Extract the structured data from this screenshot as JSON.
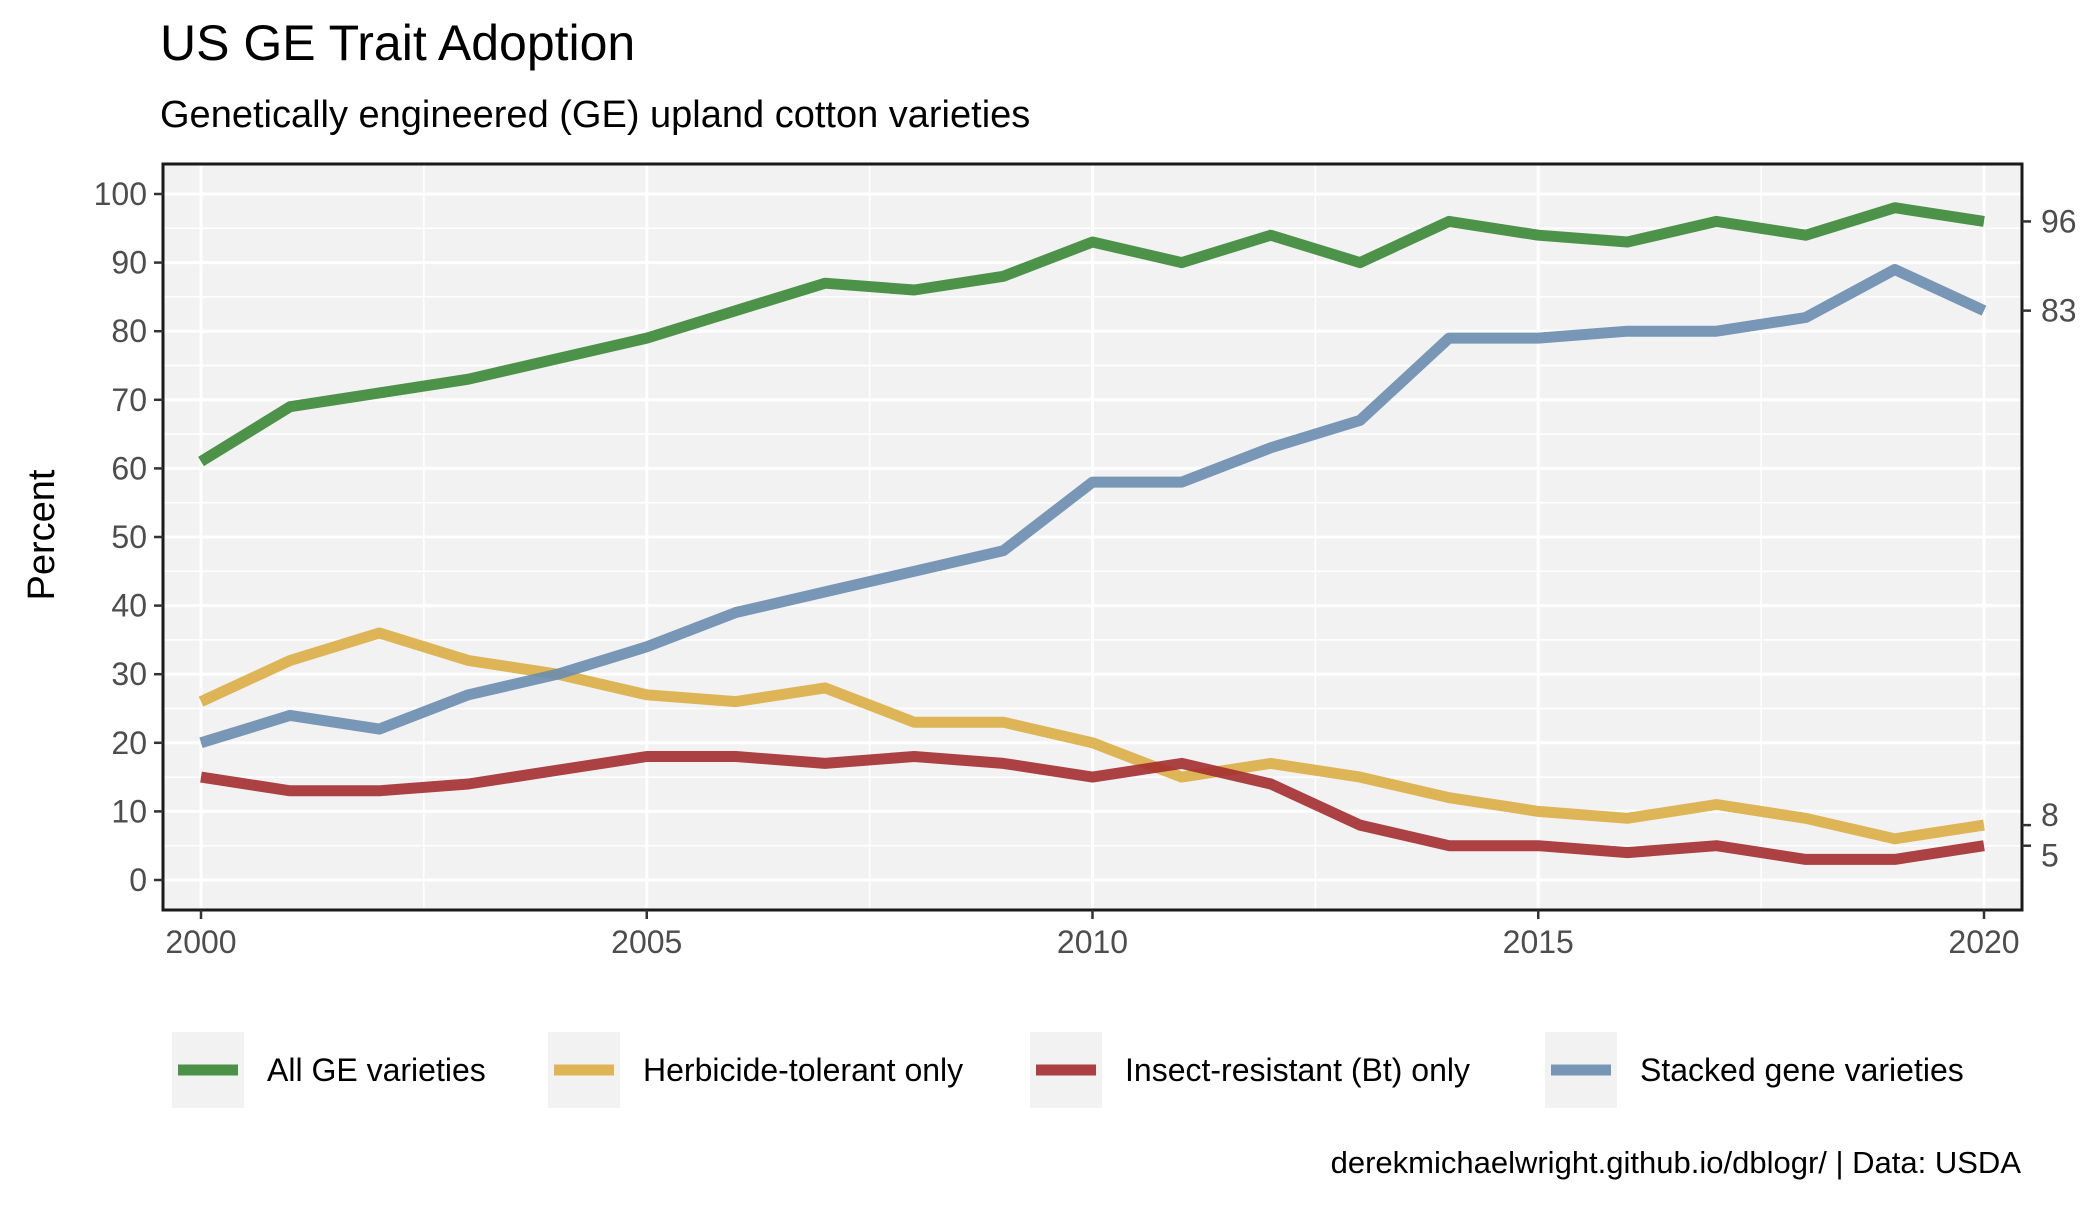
{
  "chart_data": {
    "type": "line",
    "title": "US GE Trait Adoption",
    "subtitle": "Genetically engineered (GE) upland cotton varieties",
    "ylabel": "Percent",
    "xlabel": "",
    "caption": "derekmichaelwright.github.io/dblogr/ | Data: USDA",
    "x": [
      2000,
      2001,
      2002,
      2003,
      2004,
      2005,
      2006,
      2007,
      2008,
      2009,
      2010,
      2011,
      2012,
      2013,
      2014,
      2015,
      2016,
      2017,
      2018,
      2019,
      2020
    ],
    "xlim": [
      2000,
      2020
    ],
    "ylim": [
      0,
      100
    ],
    "x_ticks": [
      2000,
      2005,
      2010,
      2015,
      2020
    ],
    "y_ticks": [
      0,
      10,
      20,
      30,
      40,
      50,
      60,
      70,
      80,
      90,
      100
    ],
    "grid": true,
    "legend_position": "bottom",
    "series": [
      {
        "name": "All GE varieties",
        "color": "#3a8735",
        "values": [
          61,
          69,
          71,
          73,
          76,
          79,
          83,
          87,
          86,
          88,
          93,
          90,
          94,
          90,
          96,
          94,
          93,
          96,
          94,
          98,
          96
        ]
      },
      {
        "name": "Herbicide-tolerant only",
        "color": "#dcae45",
        "values": [
          26,
          32,
          36,
          32,
          30,
          27,
          26,
          28,
          23,
          23,
          20,
          15,
          17,
          15,
          12,
          10,
          9,
          11,
          9,
          6,
          8
        ]
      },
      {
        "name": "Insect-resistant (Bt) only",
        "color": "#a32d30",
        "values": [
          15,
          13,
          13,
          14,
          16,
          18,
          18,
          17,
          18,
          17,
          15,
          17,
          14,
          8,
          5,
          5,
          4,
          5,
          3,
          3,
          5
        ]
      },
      {
        "name": "Stacked gene varieties",
        "color": "#6a8caf",
        "values": [
          20,
          24,
          22,
          27,
          30,
          34,
          39,
          42,
          45,
          48,
          58,
          58,
          63,
          67,
          79,
          79,
          80,
          80,
          82,
          89,
          83
        ]
      }
    ],
    "end_labels": [
      "96",
      "83",
      "8",
      "5"
    ]
  }
}
